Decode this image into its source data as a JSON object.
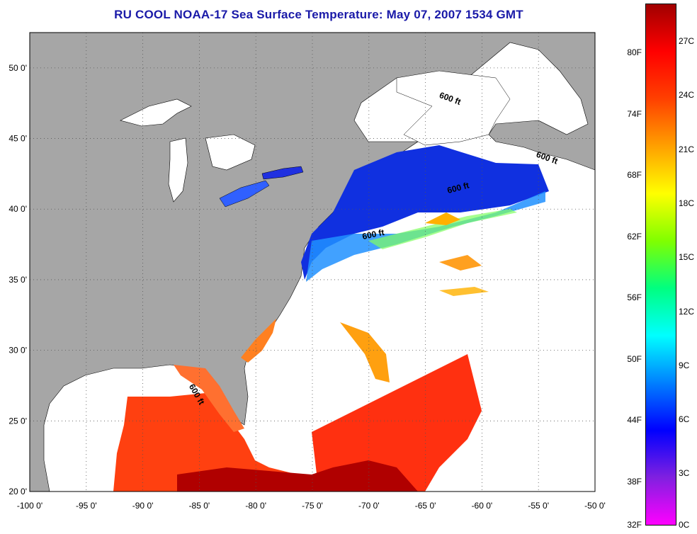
{
  "title": "RU COOL  NOAA-17  Sea Surface Temperature:  May 07, 2007 1534 GMT",
  "map": {
    "lon_range": [
      -100,
      -50
    ],
    "lat_range": [
      20,
      52.5
    ],
    "x_ticks": [
      "-100 0'",
      "-95 0'",
      "-90 0'",
      "-85 0'",
      "-80 0'",
      "-75 0'",
      "-70 0'",
      "-65 0'",
      "-60 0'",
      "-55 0'",
      "-50 0'"
    ],
    "y_ticks": [
      "20 0'",
      "25 0'",
      "30 0'",
      "35 0'",
      "40 0'",
      "45 0'",
      "50 0'"
    ],
    "grid": "dotted",
    "contour_label": "600 ft",
    "land_color": "#a6a6a6",
    "no_data_color": "#ffffff"
  },
  "colorbar": {
    "fahrenheit_labels": [
      "80F",
      "74F",
      "68F",
      "62F",
      "56F",
      "50F",
      "44F",
      "38F",
      "32F"
    ],
    "celsius_labels": [
      "27C",
      "24C",
      "21C",
      "18C",
      "15C",
      "12C",
      "9C",
      "6C",
      "3C",
      "0C"
    ],
    "range_c": [
      0,
      29
    ],
    "colors": [
      "#ff00ff",
      "#8020e0",
      "#0000ff",
      "#0080ff",
      "#00ffff",
      "#00ff80",
      "#80ff00",
      "#ffff00",
      "#ffa000",
      "#ff4000",
      "#ff0000",
      "#a00000"
    ]
  }
}
